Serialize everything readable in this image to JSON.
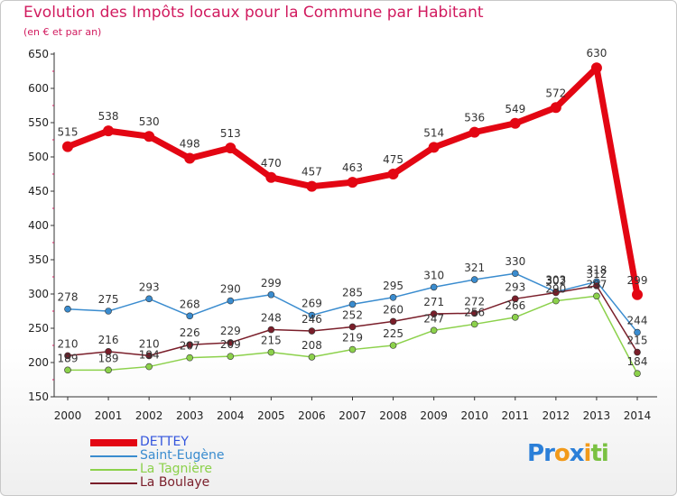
{
  "chart_data": {
    "type": "line",
    "title": "Evolution des Impôts locaux pour la Commune par Habitant",
    "subtitle": "(en € et par an)",
    "categories": [
      "2000",
      "2001",
      "2002",
      "2003",
      "2004",
      "2005",
      "2006",
      "2007",
      "2008",
      "2009",
      "2010",
      "2011",
      "2012",
      "2013",
      "2014"
    ],
    "ylim": [
      150,
      650
    ],
    "yticks": [
      150,
      200,
      250,
      300,
      350,
      400,
      450,
      500,
      550,
      600,
      650
    ],
    "grid": false,
    "legend_position": "bottom-left",
    "series": [
      {
        "name": "DETTEY",
        "color": "#e30613",
        "label_color": "#3355dd",
        "values": [
          515,
          538,
          530,
          498,
          513,
          470,
          457,
          463,
          475,
          514,
          536,
          549,
          572,
          630,
          299
        ]
      },
      {
        "name": "Saint-Eugène",
        "color": "#3a8ccf",
        "label_color": "#3a8ccf",
        "values": [
          278,
          275,
          293,
          268,
          290,
          299,
          269,
          285,
          295,
          310,
          321,
          330,
          303,
          318,
          244
        ]
      },
      {
        "name": "La Tagnière",
        "color": "#8cd14b",
        "label_color": "#8cd14b",
        "values": [
          189,
          189,
          194,
          207,
          209,
          215,
          208,
          219,
          225,
          247,
          256,
          266,
          290,
          297,
          184
        ]
      },
      {
        "name": "La Boulaye",
        "color": "#7a1e2a",
        "label_color": "#7a1e2a",
        "values": [
          210,
          216,
          210,
          226,
          229,
          248,
          246,
          252,
          260,
          271,
          272,
          293,
          302,
          312,
          215
        ]
      }
    ]
  },
  "logo": {
    "letters": [
      {
        "char": "P",
        "color": "#2b7fd8"
      },
      {
        "char": "r",
        "color": "#2b7fd8"
      },
      {
        "char": "o",
        "color": "#f29a1a"
      },
      {
        "char": "x",
        "color": "#2b7fd8"
      },
      {
        "char": "i",
        "color": "#f29a1a"
      },
      {
        "char": "t",
        "color": "#7ac142"
      },
      {
        "char": "i",
        "color": "#7ac142"
      }
    ]
  }
}
